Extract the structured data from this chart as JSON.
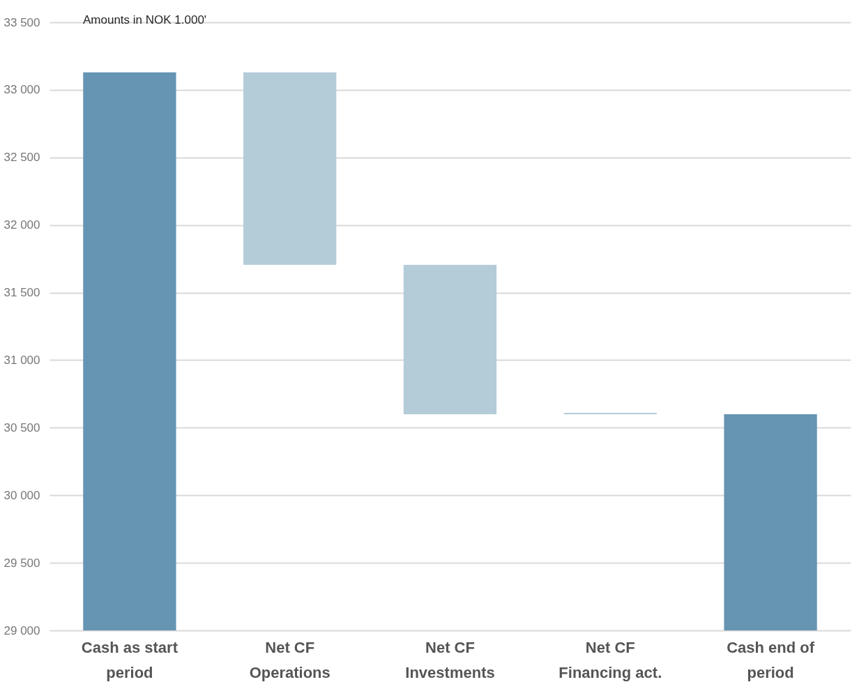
{
  "chart_data": {
    "type": "bar",
    "annotations": [
      "Amounts in NOK 1.000'"
    ],
    "categories": [
      "Cash as start period",
      "Net CF Operations",
      "Net CF Investments",
      "Net CF Financing act.",
      "Cash end of period"
    ],
    "values": [
      33130,
      -1425,
      -1105,
      10,
      30600
    ],
    "base": [
      0,
      33130,
      31705,
      30600,
      0
    ],
    "colors": [
      "#6694b3",
      "#b4cbd8",
      "#b4cbd8",
      "#b4cbd8",
      "#6694b3"
    ],
    "ylim": [
      29000,
      33500
    ],
    "yticks": [
      {
        "value": 29000,
        "label": "29 000"
      },
      {
        "value": 29500,
        "label": "29 500"
      },
      {
        "value": 30000,
        "label": "30 000"
      },
      {
        "value": 30500,
        "label": "30 500"
      },
      {
        "value": 31000,
        "label": "31 000"
      },
      {
        "value": 31500,
        "label": "31 500"
      },
      {
        "value": 32000,
        "label": "32 000"
      },
      {
        "value": 32500,
        "label": "32 500"
      },
      {
        "value": 33000,
        "label": "33 000"
      },
      {
        "value": 33500,
        "label": "33 500"
      }
    ],
    "grid": "y"
  }
}
